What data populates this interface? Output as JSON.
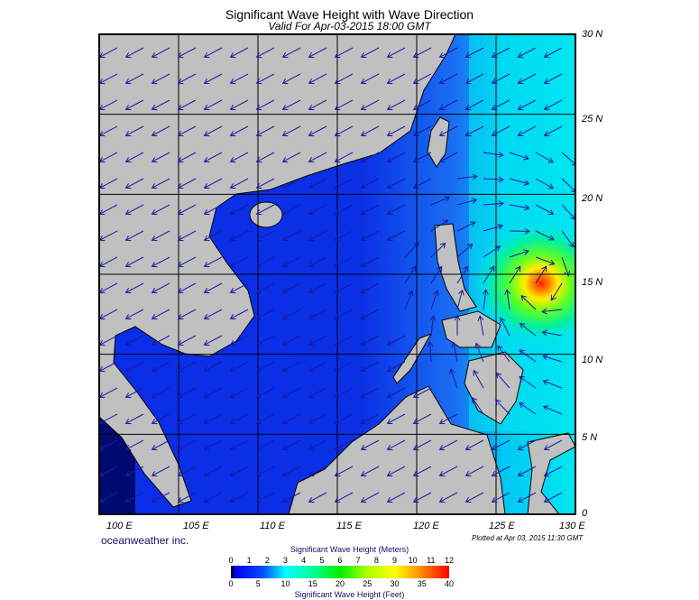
{
  "title": "Significant Wave Height with Wave Direction",
  "subtitle": "Valid For Apr-03-2015 18:00 GMT",
  "lat_labels": [
    "30 N",
    "25 N",
    "20 N",
    "15 N",
    "10 N",
    "5 N",
    "0"
  ],
  "lon_labels": [
    "100 E",
    "105 E",
    "110 E",
    "115 E",
    "120 E",
    "125 E",
    "130 E"
  ],
  "brand": "oceanweather inc.",
  "plotted": "Plotted at Apr 03, 2015 11:30 GMT",
  "colorbar": {
    "title_meters": "Significant Wave Height (Meters)",
    "title_feet": "Significant Wave Height (Feet)",
    "meters": [
      "0",
      "1",
      "2",
      "3",
      "4",
      "5",
      "6",
      "7",
      "8",
      "9",
      "10",
      "11",
      "12"
    ],
    "feet": [
      "0",
      "5",
      "10",
      "15",
      "20",
      "25",
      "30",
      "35",
      "40"
    ]
  },
  "colors": {
    "land": "#c0c0c0",
    "arrow": "#1a1aa0",
    "sea_low": "#0a2ee8",
    "sea_mid": "#1a6cf0",
    "sea_high": "#00e8f0"
  },
  "map_extent": {
    "lon": [
      99,
      130
    ],
    "lat": [
      0,
      30
    ]
  },
  "storm_center": {
    "lon": 127.5,
    "lat": 15
  }
}
